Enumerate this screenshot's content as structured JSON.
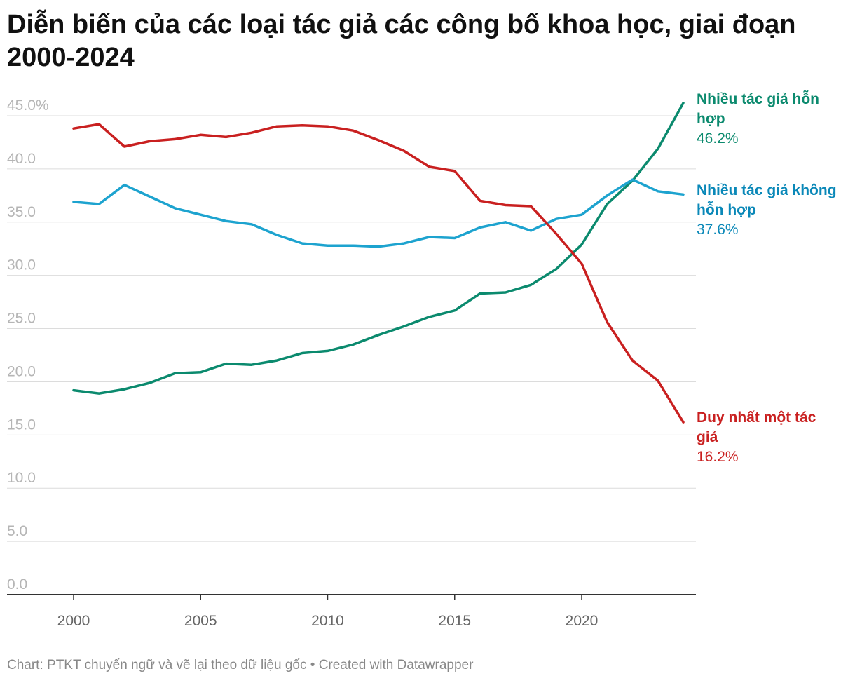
{
  "chart_data": {
    "type": "line",
    "title": "Diễn biến của các loại tác giả các công bố khoa học, giai đoạn 2000-2024",
    "footer": "Chart: PTKT chuyển ngữ và vẽ lại theo dữ liệu gốc • Created with Datawrapper",
    "xlabel": "",
    "ylabel": "",
    "x": [
      2000,
      2001,
      2002,
      2003,
      2004,
      2005,
      2006,
      2007,
      2008,
      2009,
      2010,
      2011,
      2012,
      2013,
      2014,
      2015,
      2016,
      2017,
      2018,
      2019,
      2020,
      2021,
      2022,
      2023,
      2024
    ],
    "x_ticks": [
      "2000",
      "2005",
      "2010",
      "2015",
      "2020"
    ],
    "y_ticks": [
      "0.0",
      "5.0",
      "10.0",
      "15.0",
      "20.0",
      "25.0",
      "30.0",
      "35.0",
      "40.0",
      "45.0%"
    ],
    "ylim": [
      0,
      45
    ],
    "grid": true,
    "legend": "direct labels at right",
    "series": [
      {
        "name": "Nhiều tác giả hỗn hợp",
        "name_lines": [
          "Nhiều tác giả hỗn",
          "hợp"
        ],
        "end_label": "46.2%",
        "color": "#0b8a6e",
        "values": [
          19.2,
          18.9,
          19.3,
          19.9,
          20.8,
          20.9,
          21.7,
          21.6,
          22.0,
          22.7,
          22.9,
          23.5,
          24.4,
          25.2,
          26.1,
          26.7,
          28.3,
          28.4,
          29.1,
          30.6,
          32.9,
          36.7,
          38.9,
          41.9,
          46.2
        ]
      },
      {
        "name": "Nhiều tác giả không hỗn hợp",
        "name_lines": [
          "Nhiều tác giả không",
          "hỗn hợp"
        ],
        "end_label": "37.6%",
        "color": "#1da3cf",
        "label_color": "#0a88b8",
        "values": [
          36.9,
          36.7,
          38.5,
          37.4,
          36.3,
          35.7,
          35.1,
          34.8,
          33.8,
          33.0,
          32.8,
          32.8,
          32.7,
          33.0,
          33.6,
          33.5,
          34.5,
          35.0,
          34.2,
          35.3,
          35.7,
          37.5,
          39.0,
          37.9,
          37.6
        ]
      },
      {
        "name": "Duy nhất một tác giả",
        "name_lines": [
          "Duy nhất một tác",
          "giả"
        ],
        "end_label": "16.2%",
        "color": "#c92020",
        "values": [
          43.8,
          44.2,
          42.1,
          42.6,
          42.8,
          43.2,
          43.0,
          43.4,
          44.0,
          44.1,
          44.0,
          43.6,
          42.7,
          41.7,
          40.2,
          39.8,
          37.0,
          36.6,
          36.5,
          33.9,
          31.1,
          25.6,
          22.0,
          20.1,
          16.2
        ]
      }
    ]
  }
}
